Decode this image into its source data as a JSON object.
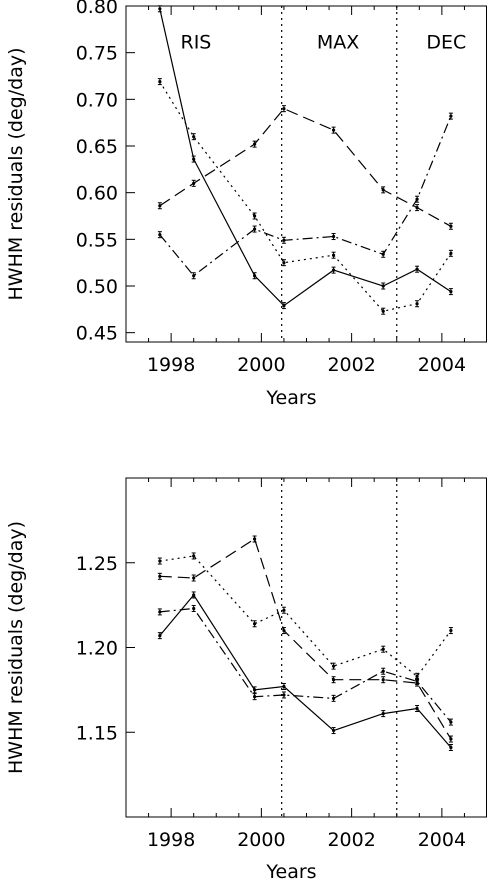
{
  "chart_data": [
    {
      "type": "line",
      "title": "",
      "xlabel": "Years",
      "ylabel": "HWHM residuals (deg/day)",
      "xlim": [
        1997,
        2005
      ],
      "ylim": [
        0.44,
        0.8
      ],
      "x_ticks": [
        1998,
        2000,
        2002,
        2004
      ],
      "x_tick_labels": [
        "1998",
        "2000",
        "2002",
        "2004"
      ],
      "y_ticks": [
        0.45,
        0.5,
        0.55,
        0.6,
        0.65,
        0.7,
        0.75,
        0.8
      ],
      "y_tick_labels": [
        "0.45",
        "0.50",
        "0.55",
        "0.60",
        "0.65",
        "0.70",
        "0.75",
        "0.80"
      ],
      "vlines": [
        2000.45,
        2003.0
      ],
      "phase_labels": [
        {
          "text": "RIS",
          "x": 1998.55
        },
        {
          "text": "MAX",
          "x": 2001.7
        },
        {
          "text": "DEC",
          "x": 2004.1
        }
      ],
      "phase_label_y": 0.762,
      "grid": false,
      "series": [
        {
          "style": "solid",
          "x": [
            1997.75,
            1998.5,
            1999.85,
            2000.5,
            2001.6,
            2002.7,
            2003.45,
            2004.2
          ],
          "y": [
            0.797,
            0.636,
            0.511,
            0.479,
            0.517,
            0.5,
            0.518,
            0.494
          ]
        },
        {
          "style": "dotted",
          "x": [
            1997.75,
            1998.5,
            1999.85,
            2000.5,
            2001.6,
            2002.7,
            2003.45,
            2004.2
          ],
          "y": [
            0.719,
            0.66,
            0.575,
            0.525,
            0.533,
            0.473,
            0.481,
            0.535
          ]
        },
        {
          "style": "dashed",
          "x": [
            1997.75,
            1998.5,
            1999.85,
            2000.5,
            2001.6,
            2002.7,
            2003.45,
            2004.2
          ],
          "y": [
            0.586,
            0.61,
            0.652,
            0.69,
            0.667,
            0.603,
            0.584,
            0.564
          ]
        },
        {
          "style": "dashdot",
          "x": [
            1997.75,
            1998.5,
            1999.85,
            2000.5,
            2001.6,
            2002.7,
            2003.45,
            2004.2
          ],
          "y": [
            0.555,
            0.511,
            0.561,
            0.549,
            0.553,
            0.534,
            0.593,
            0.682
          ]
        }
      ]
    },
    {
      "type": "line",
      "title": "",
      "xlabel": "Years",
      "ylabel": "HWHM residuals (deg/day)",
      "xlim": [
        1997,
        2005
      ],
      "ylim": [
        1.1,
        1.3
      ],
      "x_ticks": [
        1998,
        2000,
        2002,
        2004
      ],
      "x_tick_labels": [
        "1998",
        "2000",
        "2002",
        "2004"
      ],
      "y_ticks": [
        1.15,
        1.2,
        1.25
      ],
      "y_tick_labels": [
        "1.15",
        "1.20",
        "1.25"
      ],
      "vlines": [
        2000.45,
        2003.0
      ],
      "grid": false,
      "series": [
        {
          "style": "solid",
          "x": [
            1997.75,
            1998.5,
            1999.85,
            2000.5,
            2001.6,
            2002.7,
            2003.45,
            2004.2
          ],
          "y": [
            1.207,
            1.231,
            1.175,
            1.177,
            1.151,
            1.161,
            1.164,
            1.141
          ]
        },
        {
          "style": "dotted",
          "x": [
            1997.75,
            1998.5,
            1999.85,
            2000.5,
            2001.6,
            2002.7,
            2003.45,
            2004.2
          ],
          "y": [
            1.251,
            1.254,
            1.214,
            1.222,
            1.189,
            1.199,
            1.183,
            1.21
          ]
        },
        {
          "style": "dashed",
          "x": [
            1997.75,
            1998.5,
            1999.85,
            2000.5,
            2001.6,
            2002.7,
            2003.45,
            2004.2
          ],
          "y": [
            1.242,
            1.241,
            1.264,
            1.21,
            1.181,
            1.181,
            1.179,
            1.146
          ]
        },
        {
          "style": "dashdot",
          "x": [
            1997.75,
            1998.5,
            1999.85,
            2000.5,
            2001.6,
            2002.7,
            2003.45,
            2004.2
          ],
          "y": [
            1.221,
            1.223,
            1.171,
            1.172,
            1.17,
            1.186,
            1.18,
            1.156
          ]
        }
      ]
    }
  ]
}
